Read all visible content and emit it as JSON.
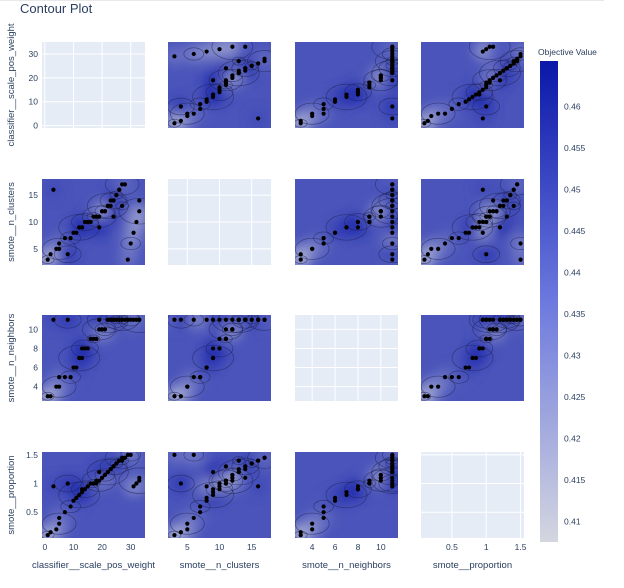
{
  "title": "Contour Plot",
  "colorbar_title": "Objective Value",
  "colors": {
    "colorscale_low": "#d4d6df",
    "colorscale_high": "#0a17a8",
    "empty_panel_bg": "#e5ecf6",
    "grid": "#ffffff",
    "point_fill": "#000000",
    "text": "#2a3f5f"
  },
  "chart_data": {
    "type": "contour",
    "colorbar": {
      "ticks": [
        0.41,
        0.415,
        0.42,
        0.425,
        0.43,
        0.435,
        0.44,
        0.445,
        0.45,
        0.455,
        0.46
      ],
      "range": [
        0.4075,
        0.4655
      ]
    },
    "params": [
      {
        "name": "classifier__scale_pos_weight",
        "range": [
          -1,
          35
        ],
        "ticks": [
          0,
          10,
          20,
          30
        ],
        "tick_labels": [
          "0",
          "10",
          "20",
          "30"
        ],
        "points": [
          1,
          2,
          4,
          5,
          5,
          7,
          9,
          10,
          11,
          12,
          13,
          13,
          14,
          15,
          16,
          17,
          18,
          18,
          19,
          20,
          20,
          21,
          21,
          22,
          22,
          23,
          23,
          24,
          24,
          25,
          25,
          26,
          26,
          27,
          28,
          29,
          30,
          31,
          32,
          33,
          33,
          3,
          8,
          19,
          24,
          27
        ]
      },
      {
        "name": "smote__n_clusters",
        "range": [
          2,
          18
        ],
        "ticks": [
          5,
          10,
          15
        ],
        "tick_labels": [
          "5",
          "10",
          "15"
        ],
        "points": [
          3,
          4,
          5,
          5,
          6,
          7,
          7,
          8,
          8,
          9,
          9,
          9,
          10,
          10,
          10,
          11,
          11,
          11,
          11,
          12,
          12,
          12,
          12,
          13,
          13,
          13,
          14,
          14,
          14,
          15,
          15,
          16,
          16,
          17,
          17,
          3,
          6,
          8,
          10,
          12,
          14,
          16,
          4,
          9,
          11,
          13
        ]
      },
      {
        "name": "smote__n_neighbors",
        "range": [
          2.5,
          11.5
        ],
        "ticks": [
          4,
          6,
          8,
          10
        ],
        "tick_labels": [
          "4",
          "6",
          "8",
          "10"
        ],
        "points": [
          3,
          3,
          4,
          4,
          5,
          5,
          5,
          6,
          6,
          7,
          7,
          8,
          8,
          8,
          9,
          9,
          9,
          9,
          10,
          10,
          10,
          10,
          10,
          11,
          11,
          11,
          11,
          11,
          11,
          11,
          11,
          11,
          11,
          11,
          11,
          11,
          11,
          11,
          11,
          11,
          11,
          11,
          11,
          11,
          11,
          11
        ]
      },
      {
        "name": "smote__proportion",
        "range": [
          0.05,
          1.55
        ],
        "ticks": [
          0.5,
          1,
          1.5
        ],
        "tick_labels": [
          "0.5",
          "1",
          "1.5"
        ],
        "points": [
          0.1,
          0.15,
          0.2,
          0.3,
          0.4,
          0.5,
          0.6,
          0.7,
          0.75,
          0.8,
          0.85,
          0.9,
          0.9,
          0.95,
          1.0,
          1.0,
          1.0,
          1.05,
          1.05,
          1.1,
          1.1,
          1.15,
          1.15,
          1.2,
          1.2,
          1.25,
          1.25,
          1.3,
          1.3,
          1.35,
          1.35,
          1.4,
          1.4,
          1.45,
          1.45,
          1.5,
          1.5,
          0.95,
          1.0,
          1.05,
          1.1,
          0.95,
          1.0,
          1.2,
          1.3,
          1.4
        ]
      }
    ],
    "objective_values": [
      0.412,
      0.418,
      0.425,
      0.431,
      0.436,
      0.441,
      0.445,
      0.449,
      0.452,
      0.455,
      0.458,
      0.461,
      0.463,
      0.459,
      0.456,
      0.452,
      0.448,
      0.444,
      0.44,
      0.437,
      0.433,
      0.429,
      0.426,
      0.422,
      0.419,
      0.416,
      0.45,
      0.453,
      0.457,
      0.46,
      0.462,
      0.454,
      0.447,
      0.443,
      0.439,
      0.435,
      0.43,
      0.427,
      0.423,
      0.42,
      0.446,
      0.451,
      0.458,
      0.461,
      0.455,
      0.449
    ]
  }
}
